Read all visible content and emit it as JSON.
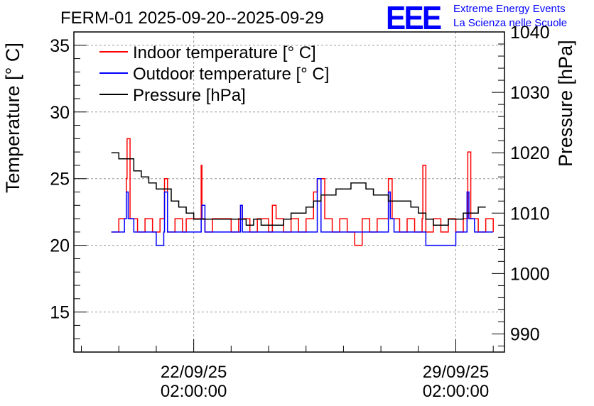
{
  "logo": {
    "mark": "EEE",
    "line1": "Extreme Energy Events",
    "line2": "La Scienza nelle Scuole"
  },
  "chart_data": {
    "type": "line",
    "title": "FERM-01 2025-09-20--2025-09-29",
    "ylabel": "Temperature [° C]",
    "y2label": "Pressure [hPa]",
    "xlabel": "",
    "ylim": [
      12,
      36
    ],
    "y2lim": [
      987,
      1040
    ],
    "yticks": [
      15,
      20,
      25,
      30,
      35
    ],
    "y2ticks": [
      990,
      1000,
      1010,
      1020,
      1030,
      1040
    ],
    "xlim_days": [
      -3.2,
      8.3
    ],
    "xticks": [
      {
        "day": 0,
        "line1": "22/09/25",
        "line2": "02:00:00"
      },
      {
        "day": 7,
        "line1": "29/09/25",
        "line2": "02:00:00"
      }
    ],
    "grid": true,
    "legend_position": "top-left",
    "series": [
      {
        "name": "Indoor temperature [° C]",
        "color": "#ff0000",
        "axis": "left",
        "x": [
          -2.2,
          -2.0,
          -1.85,
          -1.8,
          -1.78,
          -1.7,
          -1.5,
          -1.3,
          -1.1,
          -0.9,
          -0.8,
          -0.78,
          -0.7,
          -0.5,
          -0.3,
          -0.2,
          0.1,
          0.2,
          0.22,
          0.3,
          0.5,
          0.7,
          1.0,
          1.2,
          1.25,
          1.3,
          1.5,
          1.7,
          2.0,
          2.1,
          2.2,
          2.4,
          2.6,
          2.8,
          3.0,
          3.2,
          3.3,
          3.5,
          3.7,
          3.9,
          4.1,
          4.3,
          4.5,
          4.7,
          4.9,
          5.1,
          5.2,
          5.3,
          5.5,
          5.7,
          5.9,
          6.1,
          6.12,
          6.2,
          6.4,
          6.6,
          6.8,
          7.0,
          7.2,
          7.3,
          7.32,
          7.4,
          7.6,
          7.8,
          8.0
        ],
        "values": [
          21,
          22,
          22,
          25,
          28,
          22,
          21,
          22,
          21,
          22,
          22,
          25,
          21,
          22,
          21,
          22,
          22,
          26,
          22,
          21,
          22,
          22,
          21,
          22,
          23,
          22,
          21,
          22,
          21,
          23,
          22,
          21,
          22,
          21,
          22,
          24,
          25,
          22,
          21,
          22,
          21,
          20,
          22,
          21,
          22,
          22,
          25,
          22,
          21,
          22,
          21,
          22,
          26,
          21,
          22,
          21,
          22,
          21,
          22,
          22,
          27,
          22,
          21,
          22,
          21
        ]
      },
      {
        "name": "Outdoor temperature [° C]",
        "color": "#0000ff",
        "axis": "left",
        "x": [
          -2.2,
          -1.85,
          -1.8,
          -1.75,
          -1.6,
          -1.2,
          -1.0,
          -0.95,
          -0.8,
          -0.78,
          -0.7,
          -0.2,
          0.2,
          0.22,
          0.3,
          1.2,
          1.25,
          1.3,
          2.2,
          3.2,
          3.3,
          3.4,
          4.0,
          5.0,
          5.2,
          5.25,
          5.35,
          6.0,
          6.2,
          6.4,
          6.8,
          7.0,
          7.2,
          7.3,
          7.35,
          7.5,
          8.0
        ],
        "values": [
          21,
          22,
          24,
          22,
          21,
          21,
          20,
          20,
          21,
          24,
          21,
          21,
          22,
          23,
          21,
          21,
          23,
          21,
          21,
          21,
          25,
          21,
          21,
          21,
          24,
          22,
          21,
          21,
          20,
          20,
          20,
          21,
          21,
          24,
          22,
          21,
          21
        ]
      },
      {
        "name": "Pressure [hPa]",
        "color": "#000000",
        "axis": "right",
        "x": [
          -2.2,
          -2.0,
          -1.8,
          -1.6,
          -1.4,
          -1.2,
          -1.0,
          -0.8,
          -0.6,
          -0.4,
          -0.2,
          0.0,
          0.2,
          0.4,
          0.6,
          0.8,
          1.0,
          1.2,
          1.4,
          1.6,
          1.8,
          2.0,
          2.2,
          2.4,
          2.6,
          2.8,
          3.0,
          3.2,
          3.4,
          3.6,
          3.8,
          4.0,
          4.2,
          4.4,
          4.6,
          4.8,
          5.0,
          5.2,
          5.4,
          5.6,
          5.8,
          6.0,
          6.2,
          6.4,
          6.6,
          6.8,
          7.0,
          7.2,
          7.4,
          7.6,
          7.8
        ],
        "values": [
          1020,
          1019,
          1019,
          1017,
          1016,
          1015,
          1014,
          1014,
          1012,
          1011,
          1010,
          1009,
          1009,
          1009,
          1009,
          1009,
          1009,
          1009,
          1008,
          1009,
          1008,
          1008,
          1008,
          1009,
          1010,
          1010,
          1011,
          1012,
          1013,
          1013,
          1014,
          1014,
          1015,
          1015,
          1014,
          1013,
          1013,
          1012,
          1012,
          1012,
          1011,
          1010,
          1009,
          1008,
          1008,
          1009,
          1009,
          1010,
          1010,
          1011,
          1011
        ]
      }
    ]
  }
}
